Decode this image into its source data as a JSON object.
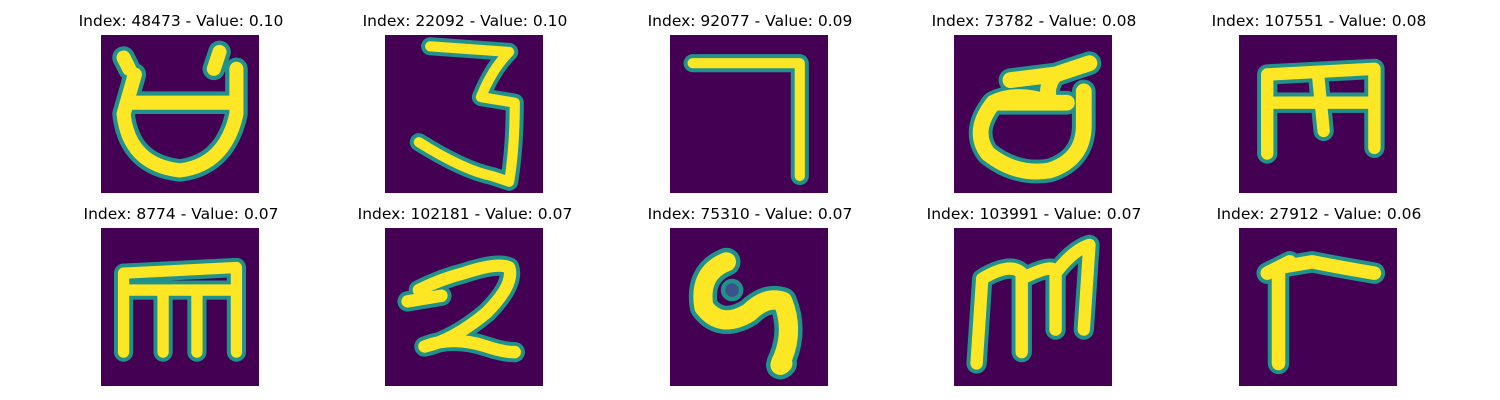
{
  "panels": [
    {
      "title": "Index: 48473 - Value: 0.10",
      "glyph": "character-1"
    },
    {
      "title": "Index: 22092 - Value: 0.10",
      "glyph": "character-2"
    },
    {
      "title": "Index: 92077 - Value: 0.09",
      "glyph": "character-3"
    },
    {
      "title": "Index: 73782 - Value: 0.08",
      "glyph": "character-4"
    },
    {
      "title": "Index: 107551 - Value: 0.08",
      "glyph": "character-5"
    },
    {
      "title": "Index: 8774 - Value: 0.07",
      "glyph": "character-6"
    },
    {
      "title": "Index: 102181 - Value: 0.07",
      "glyph": "character-7"
    },
    {
      "title": "Index: 75310 - Value: 0.07",
      "glyph": "character-8"
    },
    {
      "title": "Index: 103991 - Value: 0.07",
      "glyph": "character-9"
    },
    {
      "title": "Index: 27912 - Value: 0.06",
      "glyph": "character-10"
    }
  ],
  "colors": {
    "background": "#440154",
    "stroke_edge": "#21918c",
    "stroke_core": "#fde725"
  }
}
